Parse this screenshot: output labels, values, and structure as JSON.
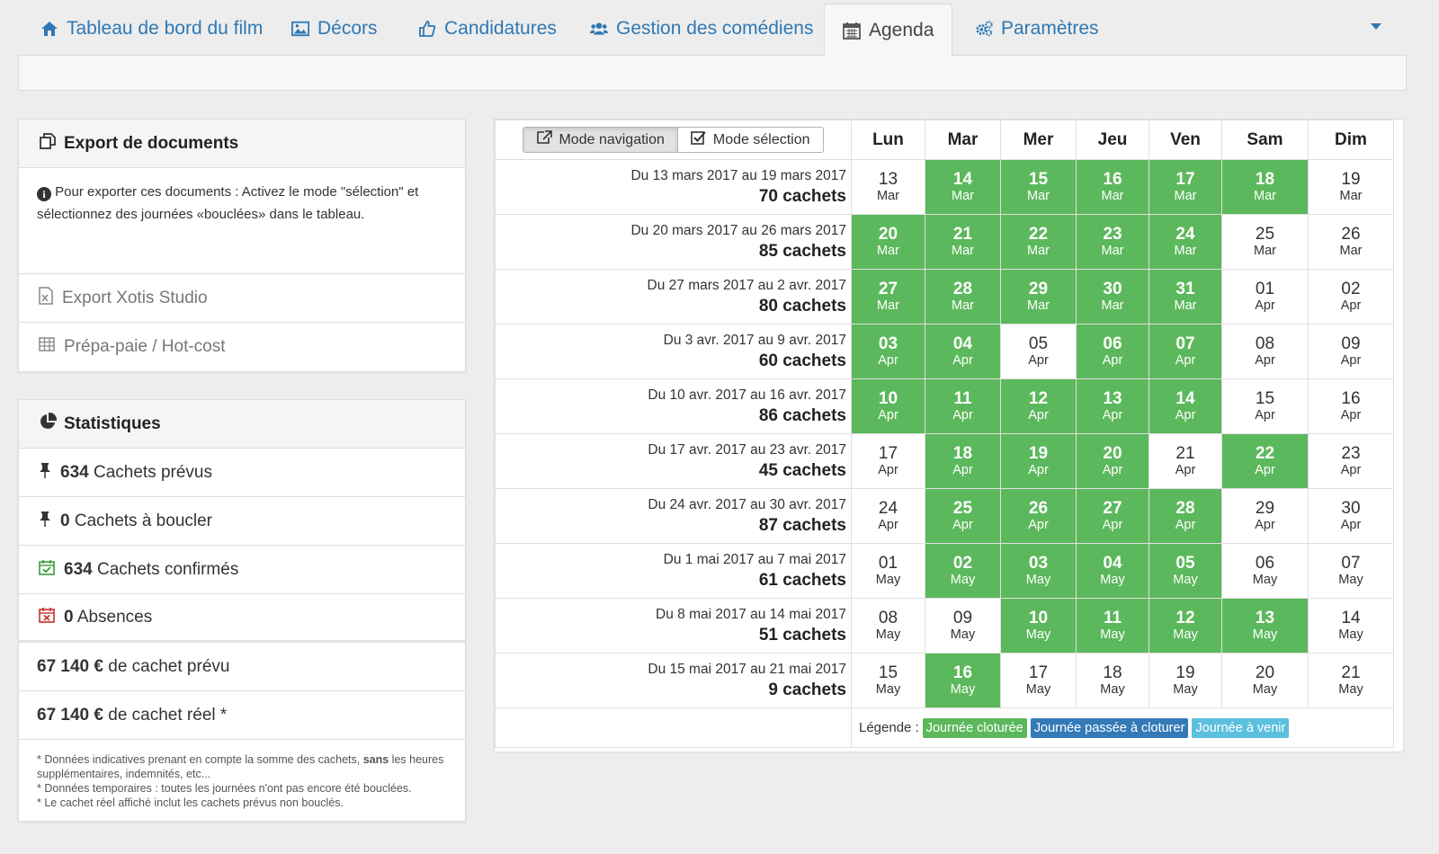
{
  "tabs": [
    {
      "label": "Tableau de bord du film",
      "icon": "home-icon"
    },
    {
      "label": "Décors",
      "icon": "image-icon"
    },
    {
      "label": "Candidatures",
      "icon": "thumbs-up-icon"
    },
    {
      "label": "Gestion des comédiens",
      "icon": "users-icon"
    },
    {
      "label": "Agenda",
      "icon": "calendar-icon",
      "active": true
    },
    {
      "label": "Paramètres",
      "icon": "gears-icon"
    }
  ],
  "export": {
    "title": "Export de documents",
    "info": "Pour exporter ces documents : Activez le mode \"sélection\" et sélectionnez des journées «bouclées» dans le tableau.",
    "xotis": "Export Xotis Studio",
    "prepa": "Prépa-paie / Hot-cost"
  },
  "stats": {
    "title": "Statistiques",
    "prevus_n": "634",
    "prevus_t": "Cachets prévus",
    "boucler_n": "0",
    "boucler_t": "Cachets à boucler",
    "confirmes_n": "634",
    "confirmes_t": "Cachets confirmés",
    "absences_n": "0",
    "absences_t": "Absences",
    "cachet_prevu_n": "67 140 €",
    "cachet_prevu_t": "de cachet prévu",
    "cachet_reel_n": "67 140 €",
    "cachet_reel_t": "de cachet réel *",
    "note1a": "* Données indicatives prenant en compte la somme des cachets, ",
    "note1b": "sans",
    "note1c": " les heures supplémentaires, indemnités, etc...",
    "note2": "* Données temporaires : toutes les journées n'ont pas encore été bouclées.",
    "note3": "* Le cachet réel affiché inclut les cachets prévus non bouclés."
  },
  "calendar": {
    "mode_nav": "Mode navigation",
    "mode_sel": "Mode sélection",
    "days": [
      "Lun",
      "Mar",
      "Mer",
      "Jeu",
      "Ven",
      "Sam",
      "Dim"
    ],
    "legend_label": "Légende :",
    "legend": [
      "Journée cloturée",
      "Journée passée à cloturer",
      "Journée à venir"
    ],
    "colors": {
      "closed": "#5cb85c",
      "past": "#337ab7",
      "future": "#5bc0de"
    },
    "weeks": [
      {
        "range": "Du 13 mars 2017 au 19 mars 2017",
        "cachets": "70 cachets",
        "days": [
          [
            "13",
            "Mar",
            0
          ],
          [
            "14",
            "Mar",
            1
          ],
          [
            "15",
            "Mar",
            1
          ],
          [
            "16",
            "Mar",
            1
          ],
          [
            "17",
            "Mar",
            1
          ],
          [
            "18",
            "Mar",
            1
          ],
          [
            "19",
            "Mar",
            0
          ]
        ]
      },
      {
        "range": "Du 20 mars 2017 au 26 mars 2017",
        "cachets": "85 cachets",
        "days": [
          [
            "20",
            "Mar",
            1
          ],
          [
            "21",
            "Mar",
            1
          ],
          [
            "22",
            "Mar",
            1
          ],
          [
            "23",
            "Mar",
            1
          ],
          [
            "24",
            "Mar",
            1
          ],
          [
            "25",
            "Mar",
            0
          ],
          [
            "26",
            "Mar",
            0
          ]
        ]
      },
      {
        "range": "Du 27 mars 2017 au 2 avr. 2017",
        "cachets": "80 cachets",
        "days": [
          [
            "27",
            "Mar",
            1
          ],
          [
            "28",
            "Mar",
            1
          ],
          [
            "29",
            "Mar",
            1
          ],
          [
            "30",
            "Mar",
            1
          ],
          [
            "31",
            "Mar",
            1
          ],
          [
            "01",
            "Apr",
            0
          ],
          [
            "02",
            "Apr",
            0
          ]
        ]
      },
      {
        "range": "Du 3 avr. 2017 au 9 avr. 2017",
        "cachets": "60 cachets",
        "days": [
          [
            "03",
            "Apr",
            1
          ],
          [
            "04",
            "Apr",
            1
          ],
          [
            "05",
            "Apr",
            0
          ],
          [
            "06",
            "Apr",
            1
          ],
          [
            "07",
            "Apr",
            1
          ],
          [
            "08",
            "Apr",
            0
          ],
          [
            "09",
            "Apr",
            0
          ]
        ]
      },
      {
        "range": "Du 10 avr. 2017 au 16 avr. 2017",
        "cachets": "86 cachets",
        "days": [
          [
            "10",
            "Apr",
            1
          ],
          [
            "11",
            "Apr",
            1
          ],
          [
            "12",
            "Apr",
            1
          ],
          [
            "13",
            "Apr",
            1
          ],
          [
            "14",
            "Apr",
            1
          ],
          [
            "15",
            "Apr",
            0
          ],
          [
            "16",
            "Apr",
            0
          ]
        ]
      },
      {
        "range": "Du 17 avr. 2017 au 23 avr. 2017",
        "cachets": "45 cachets",
        "days": [
          [
            "17",
            "Apr",
            0
          ],
          [
            "18",
            "Apr",
            1
          ],
          [
            "19",
            "Apr",
            1
          ],
          [
            "20",
            "Apr",
            1
          ],
          [
            "21",
            "Apr",
            0
          ],
          [
            "22",
            "Apr",
            1
          ],
          [
            "23",
            "Apr",
            0
          ]
        ]
      },
      {
        "range": "Du 24 avr. 2017 au 30 avr. 2017",
        "cachets": "87 cachets",
        "days": [
          [
            "24",
            "Apr",
            0
          ],
          [
            "25",
            "Apr",
            1
          ],
          [
            "26",
            "Apr",
            1
          ],
          [
            "27",
            "Apr",
            1
          ],
          [
            "28",
            "Apr",
            1
          ],
          [
            "29",
            "Apr",
            0
          ],
          [
            "30",
            "Apr",
            0
          ]
        ]
      },
      {
        "range": "Du 1 mai 2017 au 7 mai 2017",
        "cachets": "61 cachets",
        "days": [
          [
            "01",
            "May",
            0
          ],
          [
            "02",
            "May",
            1
          ],
          [
            "03",
            "May",
            1
          ],
          [
            "04",
            "May",
            1
          ],
          [
            "05",
            "May",
            1
          ],
          [
            "06",
            "May",
            0
          ],
          [
            "07",
            "May",
            0
          ]
        ]
      },
      {
        "range": "Du 8 mai 2017 au 14 mai 2017",
        "cachets": "51 cachets",
        "days": [
          [
            "08",
            "May",
            0
          ],
          [
            "09",
            "May",
            0
          ],
          [
            "10",
            "May",
            1
          ],
          [
            "11",
            "May",
            1
          ],
          [
            "12",
            "May",
            1
          ],
          [
            "13",
            "May",
            1
          ],
          [
            "14",
            "May",
            0
          ]
        ]
      },
      {
        "range": "Du 15 mai 2017 au 21 mai 2017",
        "cachets": "9 cachets",
        "days": [
          [
            "15",
            "May",
            0
          ],
          [
            "16",
            "May",
            1
          ],
          [
            "17",
            "May",
            0
          ],
          [
            "18",
            "May",
            0
          ],
          [
            "19",
            "May",
            0
          ],
          [
            "20",
            "May",
            0
          ],
          [
            "21",
            "May",
            0
          ]
        ]
      }
    ]
  }
}
